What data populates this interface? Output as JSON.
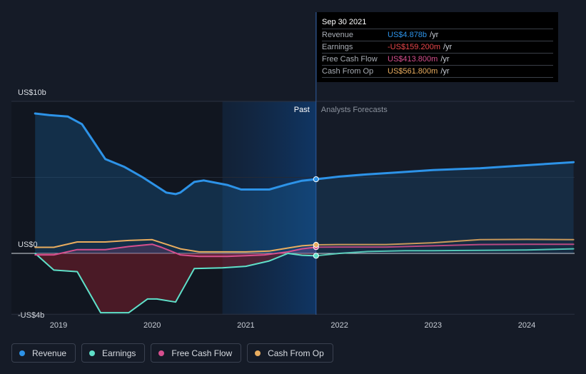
{
  "tooltip": {
    "date": "Sep 30 2021",
    "rows": [
      {
        "label": "Revenue",
        "value": "US$4.878b",
        "unit": "/yr",
        "color": "#2d93e8"
      },
      {
        "label": "Earnings",
        "value": "-US$159.200m",
        "unit": "/yr",
        "color": "#e8464a"
      },
      {
        "label": "Free Cash Flow",
        "value": "US$413.800m",
        "unit": "/yr",
        "color": "#d64f8e"
      },
      {
        "label": "Cash From Op",
        "value": "US$561.800m",
        "unit": "/yr",
        "color": "#e9ad5f"
      }
    ]
  },
  "legend": [
    {
      "label": "Revenue",
      "color": "#2d93e8"
    },
    {
      "label": "Earnings",
      "color": "#5fe0c9"
    },
    {
      "label": "Free Cash Flow",
      "color": "#d64f8e"
    },
    {
      "label": "Cash From Op",
      "color": "#e9ad5f"
    }
  ],
  "chart_data": {
    "type": "line",
    "title": "",
    "xlabel": "",
    "ylabel": "",
    "ylim": [
      -4,
      10
    ],
    "xlim": [
      2018.5,
      2024.5
    ],
    "y_tick_labels": [
      {
        "value": 10,
        "label": "US$10b"
      },
      {
        "value": 0,
        "label": "US$0"
      },
      {
        "value": -4,
        "label": "-US$4b"
      }
    ],
    "x_ticks": [
      2019,
      2020,
      2021,
      2022,
      2023,
      2024
    ],
    "x_tick_labels": [
      "2019",
      "2020",
      "2021",
      "2022",
      "2023",
      "2024"
    ],
    "past_start": 2020.75,
    "divider_x": 2021.75,
    "past_label": "Past",
    "forecast_label": "Analysts Forecasts",
    "series": [
      {
        "name": "Revenue",
        "color": "#2d93e8",
        "fill": true,
        "width": 3,
        "x": [
          2018.75,
          2018.9,
          2019.1,
          2019.25,
          2019.5,
          2019.7,
          2019.9,
          2020.05,
          2020.15,
          2020.25,
          2020.3,
          2020.45,
          2020.55,
          2020.8,
          2020.95,
          2021.1,
          2021.25,
          2021.45,
          2021.6,
          2021.75
        ],
        "y": [
          9.2,
          9.1,
          9.0,
          8.5,
          6.2,
          5.7,
          5.0,
          4.4,
          4.0,
          3.9,
          4.0,
          4.7,
          4.8,
          4.5,
          4.2,
          4.2,
          4.2,
          4.55,
          4.78,
          4.878
        ]
      },
      {
        "name": "Revenue forecast",
        "color": "#2d93e8",
        "fill": true,
        "width": 3,
        "forecast": true,
        "x": [
          2021.75,
          2022.0,
          2022.3,
          2022.6,
          2023.0,
          2023.5,
          2024.0,
          2024.5
        ],
        "y": [
          4.878,
          5.05,
          5.2,
          5.32,
          5.48,
          5.6,
          5.8,
          6.0
        ]
      },
      {
        "name": "Earnings",
        "color": "#5fe0c9",
        "fill": true,
        "width": 2,
        "x": [
          2018.75,
          2018.95,
          2019.2,
          2019.45,
          2019.75,
          2019.95,
          2020.05,
          2020.25,
          2020.45,
          2020.75,
          2021.0,
          2021.25,
          2021.45,
          2021.6,
          2021.75
        ],
        "y": [
          0.0,
          -1.1,
          -1.2,
          -3.9,
          -3.9,
          -3.0,
          -3.0,
          -3.2,
          -1.0,
          -0.95,
          -0.85,
          -0.5,
          0.0,
          -0.12,
          -0.159
        ]
      },
      {
        "name": "Earnings forecast",
        "color": "#5fe0c9",
        "fill": false,
        "width": 2,
        "forecast": true,
        "x": [
          2021.75,
          2022.0,
          2022.3,
          2022.7,
          2023.0,
          2023.5,
          2024.0,
          2024.5
        ],
        "y": [
          -0.159,
          0.0,
          0.12,
          0.18,
          0.18,
          0.2,
          0.22,
          0.3
        ]
      },
      {
        "name": "Free Cash Flow",
        "color": "#d64f8e",
        "fill": true,
        "width": 2,
        "x": [
          2018.75,
          2018.95,
          2019.2,
          2019.5,
          2019.75,
          2020.0,
          2020.1,
          2020.3,
          2020.5,
          2020.8,
          2021.0,
          2021.2,
          2021.45,
          2021.6,
          2021.75
        ],
        "y": [
          -0.1,
          -0.1,
          0.25,
          0.25,
          0.45,
          0.6,
          0.4,
          -0.1,
          -0.2,
          -0.2,
          -0.15,
          -0.1,
          0.1,
          0.3,
          0.414
        ]
      },
      {
        "name": "Free Cash Flow forecast",
        "color": "#d64f8e",
        "fill": false,
        "width": 2,
        "forecast": true,
        "x": [
          2021.75,
          2022.0,
          2022.5,
          2023.0,
          2023.5,
          2024.0,
          2024.5
        ],
        "y": [
          0.414,
          0.42,
          0.42,
          0.5,
          0.58,
          0.6,
          0.6
        ]
      },
      {
        "name": "Cash From Op",
        "color": "#e9ad5f",
        "fill": false,
        "width": 2,
        "x": [
          2018.75,
          2018.95,
          2019.2,
          2019.5,
          2019.75,
          2020.0,
          2020.1,
          2020.3,
          2020.5,
          2020.8,
          2021.0,
          2021.25,
          2021.45,
          2021.6,
          2021.75
        ],
        "y": [
          0.4,
          0.4,
          0.75,
          0.75,
          0.85,
          0.9,
          0.7,
          0.3,
          0.1,
          0.1,
          0.1,
          0.15,
          0.35,
          0.5,
          0.562
        ]
      },
      {
        "name": "Cash From Op forecast",
        "color": "#e9ad5f",
        "fill": false,
        "width": 2,
        "forecast": true,
        "x": [
          2021.75,
          2022.0,
          2022.5,
          2023.0,
          2023.5,
          2024.0,
          2024.5
        ],
        "y": [
          0.562,
          0.58,
          0.58,
          0.7,
          0.9,
          0.92,
          0.9
        ]
      }
    ]
  }
}
